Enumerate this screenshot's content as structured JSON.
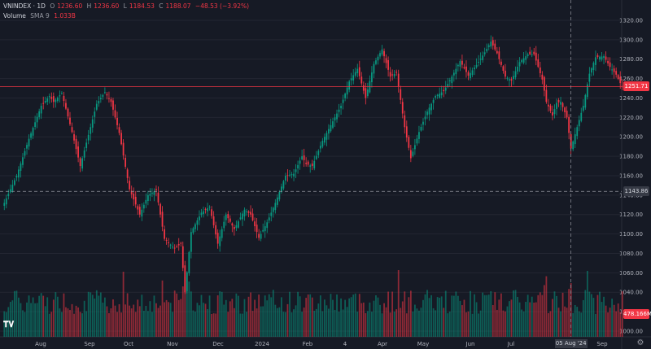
{
  "legend": {
    "symbol": "VNINDEX · 1D",
    "o_label": "O",
    "o_value": "1236.60",
    "h_label": "H",
    "h_value": "1236.60",
    "l_label": "L",
    "l_value": "1184.53",
    "c_label": "C",
    "c_value": "1188.07",
    "change": "−48.53 (−3.92%)",
    "volume_label": "Volume",
    "sma_label": "SMA 9",
    "volume_value": "1.033B"
  },
  "tags": {
    "last_price": "1251.71",
    "crosshair_price": "1143.86",
    "volume": "478.166M",
    "crosshair_date": "05 Aug '24"
  },
  "colors": {
    "up": "#089981",
    "down": "#f23645",
    "background": "#161a25",
    "grid": "#232632",
    "axis_text": "#b2b5be"
  },
  "icons": {
    "logo": "tradingview-logo-icon",
    "settings": "gear-icon"
  },
  "chart_data": {
    "type": "candlestick",
    "yticks": [
      1000,
      1020,
      1040,
      1060,
      1080,
      1100,
      1120,
      1140,
      1160,
      1180,
      1200,
      1220,
      1240,
      1260,
      1280,
      1300,
      1320
    ],
    "xlabels": [
      "Aug",
      "Sep",
      "Oct",
      "Nov",
      "Dec",
      "2024",
      "Feb",
      "4",
      "Apr",
      "May",
      "Jun",
      "Jul",
      "Sep"
    ],
    "ylim": [
      995,
      1330
    ],
    "last_price": 1251.71,
    "crosshair_price": 1143.86,
    "anchors": [
      [
        0,
        1132
      ],
      [
        6,
        1160
      ],
      [
        12,
        1198
      ],
      [
        18,
        1232
      ],
      [
        22,
        1242
      ],
      [
        24,
        1236
      ],
      [
        28,
        1245
      ],
      [
        33,
        1205
      ],
      [
        37,
        1170
      ],
      [
        42,
        1210
      ],
      [
        45,
        1234
      ],
      [
        49,
        1246
      ],
      [
        52,
        1236
      ],
      [
        56,
        1204
      ],
      [
        61,
        1146
      ],
      [
        66,
        1120
      ],
      [
        70,
        1140
      ],
      [
        74,
        1145
      ],
      [
        78,
        1095
      ],
      [
        83,
        1085
      ],
      [
        86,
        1090
      ],
      [
        88,
        1040
      ],
      [
        91,
        1102
      ],
      [
        96,
        1122
      ],
      [
        100,
        1128
      ],
      [
        104,
        1090
      ],
      [
        108,
        1120
      ],
      [
        112,
        1105
      ],
      [
        117,
        1125
      ],
      [
        120,
        1120
      ],
      [
        124,
        1096
      ],
      [
        128,
        1112
      ],
      [
        132,
        1132
      ],
      [
        137,
        1160
      ],
      [
        141,
        1162
      ],
      [
        145,
        1180
      ],
      [
        147,
        1172
      ],
      [
        150,
        1170
      ],
      [
        155,
        1196
      ],
      [
        160,
        1216
      ],
      [
        164,
        1232
      ],
      [
        168,
        1257
      ],
      [
        172,
        1270
      ],
      [
        176,
        1240
      ],
      [
        180,
        1275
      ],
      [
        184,
        1290
      ],
      [
        188,
        1262
      ],
      [
        191,
        1266
      ],
      [
        195,
        1210
      ],
      [
        198,
        1178
      ],
      [
        202,
        1205
      ],
      [
        206,
        1226
      ],
      [
        210,
        1242
      ],
      [
        214,
        1247
      ],
      [
        218,
        1262
      ],
      [
        222,
        1278
      ],
      [
        226,
        1263
      ],
      [
        230,
        1274
      ],
      [
        234,
        1287
      ],
      [
        237,
        1298
      ],
      [
        240,
        1286
      ],
      [
        244,
        1262
      ],
      [
        247,
        1258
      ],
      [
        251,
        1277
      ],
      [
        255,
        1285
      ],
      [
        258,
        1285
      ],
      [
        262,
        1259
      ],
      [
        264,
        1236
      ],
      [
        267,
        1222
      ],
      [
        269,
        1235
      ],
      [
        271,
        1236
      ],
      [
        274,
        1220
      ],
      [
        276,
        1188
      ],
      [
        279,
        1210
      ],
      [
        282,
        1232
      ],
      [
        285,
        1265
      ],
      [
        288,
        1282
      ],
      [
        292,
        1283
      ],
      [
        295,
        1272
      ],
      [
        298,
        1264
      ],
      [
        301,
        1251
      ]
    ],
    "crosshair_index": 276,
    "volume_ticks": "M/B"
  }
}
